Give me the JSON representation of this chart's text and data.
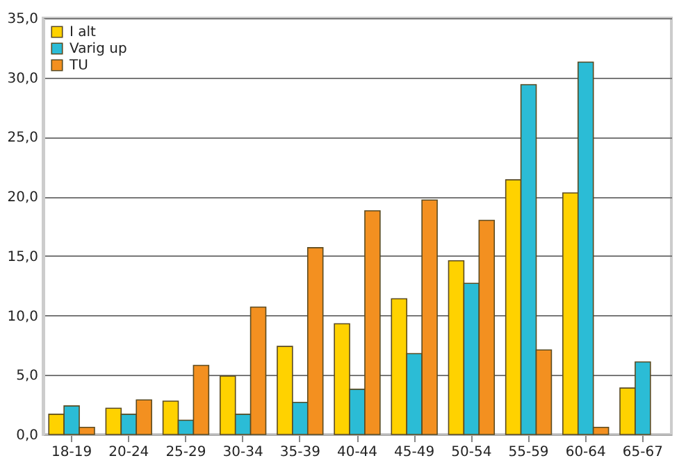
{
  "chart_data": {
    "type": "bar",
    "categories": [
      "18-19",
      "20-24",
      "25-29",
      "30-34",
      "35-39",
      "40-44",
      "45-49",
      "50-54",
      "55-59",
      "60-64",
      "65-67"
    ],
    "series": [
      {
        "name": "I alt",
        "color": "#ffd200",
        "values": [
          1.7,
          2.2,
          2.8,
          4.9,
          7.4,
          9.3,
          11.4,
          14.6,
          21.4,
          20.3,
          3.9
        ]
      },
      {
        "name": "Varig up",
        "color": "#2bbcd6",
        "values": [
          2.4,
          1.7,
          1.2,
          1.7,
          2.7,
          3.8,
          6.8,
          12.7,
          29.4,
          31.3,
          6.1
        ]
      },
      {
        "name": "TU",
        "color": "#f39020",
        "values": [
          0.6,
          2.9,
          5.8,
          10.7,
          15.7,
          18.8,
          19.7,
          18.0,
          7.1,
          0.6,
          null
        ]
      }
    ],
    "ylim": [
      0,
      35
    ],
    "yticks": [
      {
        "value": 0,
        "label": "0,0"
      },
      {
        "value": 5,
        "label": "5,0"
      },
      {
        "value": 10,
        "label": "10,0"
      },
      {
        "value": 15,
        "label": "15,0"
      },
      {
        "value": 20,
        "label": "20,0"
      },
      {
        "value": 25,
        "label": "25,0"
      },
      {
        "value": 30,
        "label": "30,0"
      },
      {
        "value": 35,
        "label": "35,0"
      }
    ],
    "grid": "y",
    "legend": "top left"
  }
}
